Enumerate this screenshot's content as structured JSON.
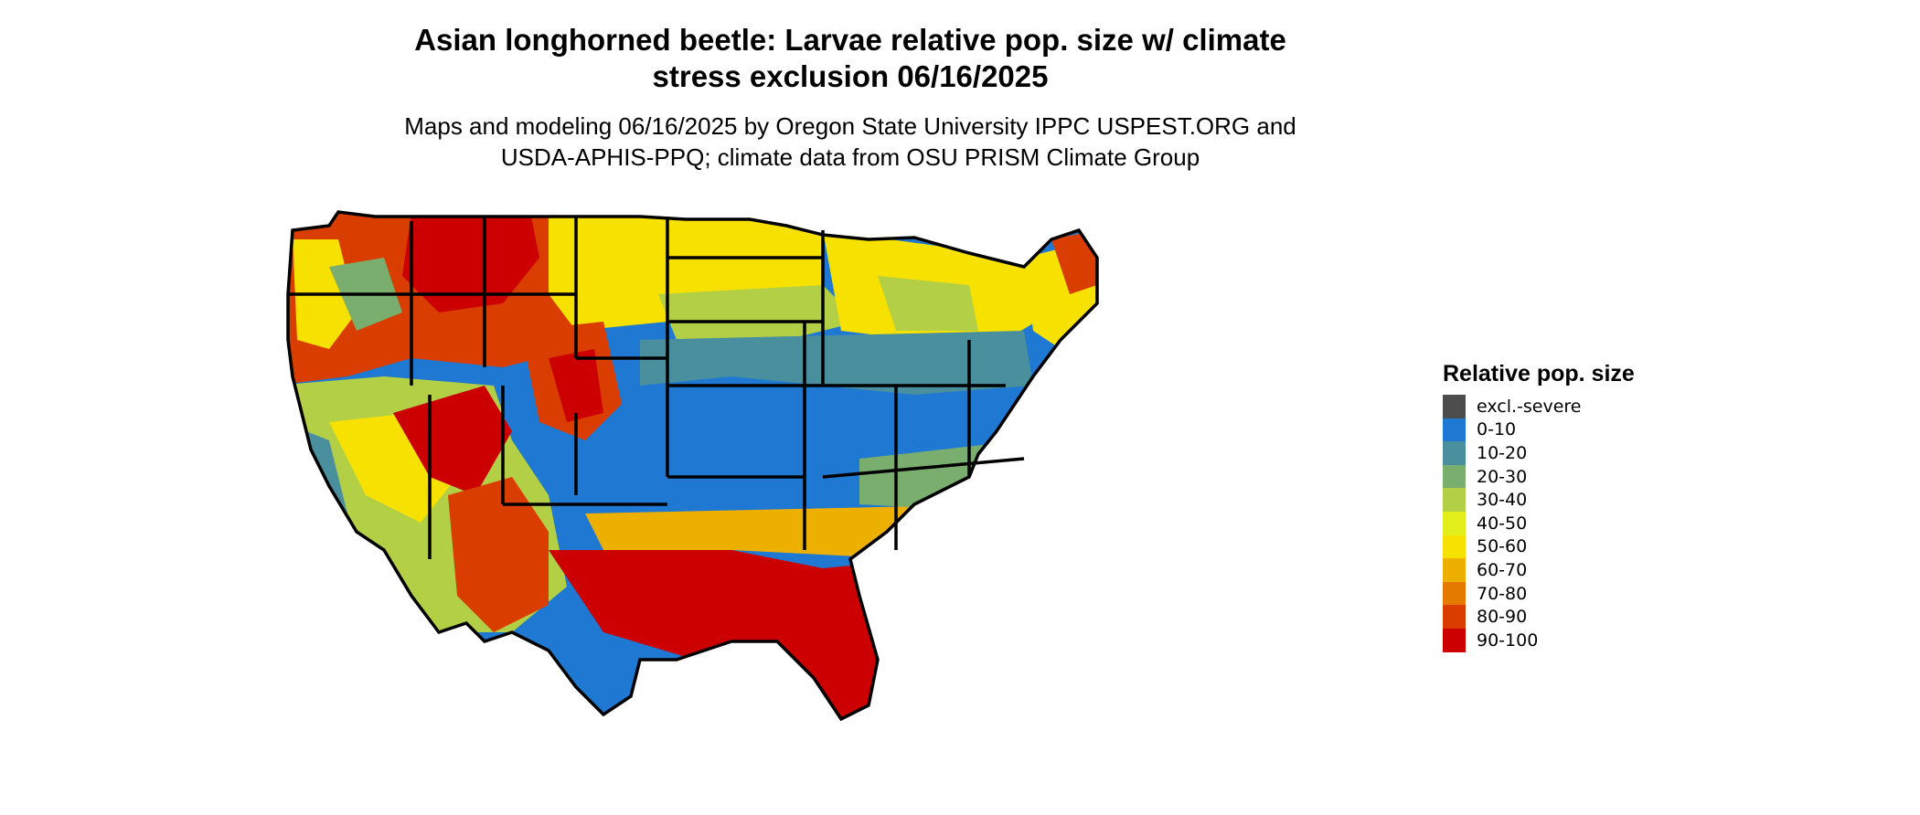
{
  "header": {
    "title_line1": "Asian longhorned beetle: Larvae relative pop. size w/ climate",
    "title_line2": "stress exclusion 06/16/2025",
    "subtitle_line1": "Maps and modeling 06/16/2025 by Oregon State University IPPC USPEST.ORG and",
    "subtitle_line2": "USDA-APHIS-PPQ; climate data from OSU PRISM Climate Group"
  },
  "legend": {
    "title": "Relative pop. size",
    "items": [
      {
        "label": "excl.-severe",
        "color": "#4d4d4d"
      },
      {
        "label": "0-10",
        "color": "#1f78d1"
      },
      {
        "label": "10-20",
        "color": "#4a8f9e"
      },
      {
        "label": "20-30",
        "color": "#7aae6e"
      },
      {
        "label": "30-40",
        "color": "#b2cf45"
      },
      {
        "label": "40-50",
        "color": "#e2ef1c"
      },
      {
        "label": "50-60",
        "color": "#f7e100"
      },
      {
        "label": "60-70",
        "color": "#eeb000"
      },
      {
        "label": "70-80",
        "color": "#e57a00"
      },
      {
        "label": "80-90",
        "color": "#d93e00"
      },
      {
        "label": "90-100",
        "color": "#cc0000"
      }
    ]
  },
  "map": {
    "region": "Contiguous United States",
    "border_color": "#000000"
  }
}
